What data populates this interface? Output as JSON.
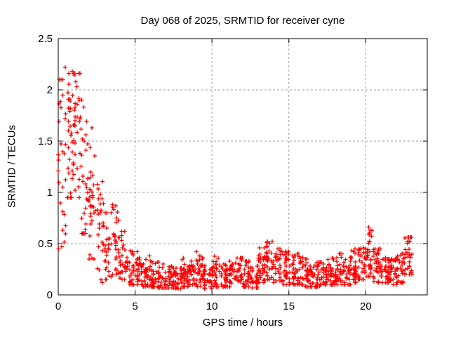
{
  "chart_data": {
    "type": "scatter",
    "title": "Day 068 of 2025, SRMTID for receiver cyne",
    "xlabel": "GPS time / hours",
    "ylabel": "SRMTID / TECUs",
    "xlim": [
      0,
      24
    ],
    "ylim": [
      0,
      2.5
    ],
    "xticks": [
      0,
      5,
      10,
      15,
      20
    ],
    "xtick_labels": [
      "0",
      "5",
      "10",
      "15",
      "20"
    ],
    "yticks": [
      0,
      0.5,
      1,
      1.5,
      2,
      2.5
    ],
    "ytick_labels": [
      "0",
      "0.5",
      "1",
      "1.5",
      "2",
      "2.5"
    ],
    "grid": true,
    "legend": "none",
    "marker": {
      "shape": "plus",
      "color": "#ff0000",
      "size": 7
    },
    "series_name": "SRMTID",
    "data_t_start": 0.0,
    "data_t_end": 23.0,
    "envelope_bins_format": [
      "t_start_h",
      "t_end_h",
      "n_points",
      "y_min",
      "y_max",
      "y_center",
      "y_halfspread"
    ],
    "envelope_bins": [
      [
        0.0,
        0.5,
        30,
        0.45,
        2.1,
        1.25,
        1.5
      ],
      [
        0.5,
        1.0,
        32,
        0.95,
        2.18,
        1.55,
        1.05
      ],
      [
        1.0,
        1.5,
        34,
        0.95,
        2.16,
        1.55,
        1.05
      ],
      [
        1.5,
        2.0,
        30,
        0.6,
        1.9,
        1.15,
        1.0
      ],
      [
        2.0,
        2.5,
        28,
        0.35,
        1.65,
        0.85,
        0.85
      ],
      [
        2.5,
        3.0,
        26,
        0.12,
        1.3,
        0.6,
        0.75
      ],
      [
        3.0,
        3.5,
        26,
        0.15,
        0.8,
        0.45,
        0.5
      ],
      [
        3.5,
        4.0,
        30,
        0.2,
        0.88,
        0.5,
        0.55
      ],
      [
        4.0,
        4.5,
        26,
        0.15,
        0.62,
        0.33,
        0.38
      ],
      [
        4.5,
        5.0,
        28,
        0.1,
        0.45,
        0.25,
        0.3
      ],
      [
        5.0,
        5.5,
        32,
        0.1,
        0.42,
        0.25,
        0.28
      ],
      [
        5.5,
        6.0,
        32,
        0.08,
        0.38,
        0.22,
        0.26
      ],
      [
        6.0,
        6.5,
        32,
        0.08,
        0.33,
        0.18,
        0.22
      ],
      [
        6.5,
        7.0,
        32,
        0.07,
        0.3,
        0.16,
        0.2
      ],
      [
        7.0,
        7.5,
        32,
        0.07,
        0.28,
        0.15,
        0.18
      ],
      [
        7.5,
        8.0,
        32,
        0.06,
        0.26,
        0.14,
        0.18
      ],
      [
        8.0,
        8.5,
        34,
        0.08,
        0.36,
        0.2,
        0.24
      ],
      [
        8.5,
        9.0,
        34,
        0.1,
        0.42,
        0.24,
        0.26
      ],
      [
        9.0,
        9.5,
        32,
        0.08,
        0.38,
        0.2,
        0.24
      ],
      [
        9.5,
        10.0,
        32,
        0.06,
        0.3,
        0.15,
        0.2
      ],
      [
        10.0,
        10.5,
        32,
        0.08,
        0.42,
        0.2,
        0.24
      ],
      [
        10.5,
        11.0,
        32,
        0.08,
        0.3,
        0.17,
        0.2
      ],
      [
        11.0,
        11.5,
        32,
        0.08,
        0.33,
        0.18,
        0.22
      ],
      [
        11.5,
        12.0,
        32,
        0.1,
        0.36,
        0.22,
        0.24
      ],
      [
        12.0,
        12.5,
        32,
        0.08,
        0.33,
        0.19,
        0.22
      ],
      [
        12.5,
        13.0,
        32,
        0.07,
        0.28,
        0.16,
        0.2
      ],
      [
        13.0,
        13.5,
        34,
        0.12,
        0.46,
        0.28,
        0.3
      ],
      [
        13.5,
        14.0,
        34,
        0.15,
        0.52,
        0.32,
        0.3
      ],
      [
        14.0,
        14.5,
        32,
        0.12,
        0.45,
        0.28,
        0.28
      ],
      [
        14.5,
        15.0,
        32,
        0.1,
        0.42,
        0.25,
        0.28
      ],
      [
        15.0,
        15.5,
        32,
        0.1,
        0.38,
        0.22,
        0.26
      ],
      [
        15.5,
        16.0,
        32,
        0.1,
        0.4,
        0.24,
        0.26
      ],
      [
        16.0,
        16.5,
        32,
        0.08,
        0.35,
        0.2,
        0.24
      ],
      [
        16.5,
        17.0,
        32,
        0.08,
        0.32,
        0.18,
        0.22
      ],
      [
        17.0,
        17.5,
        32,
        0.1,
        0.32,
        0.19,
        0.22
      ],
      [
        17.5,
        18.0,
        32,
        0.1,
        0.36,
        0.21,
        0.24
      ],
      [
        18.0,
        18.5,
        32,
        0.1,
        0.4,
        0.23,
        0.26
      ],
      [
        18.5,
        19.0,
        32,
        0.1,
        0.36,
        0.21,
        0.24
      ],
      [
        19.0,
        19.5,
        32,
        0.12,
        0.45,
        0.26,
        0.28
      ],
      [
        19.5,
        20.0,
        34,
        0.15,
        0.5,
        0.3,
        0.3
      ],
      [
        20.0,
        20.5,
        34,
        0.18,
        0.66,
        0.36,
        0.36
      ],
      [
        20.5,
        21.0,
        32,
        0.12,
        0.45,
        0.26,
        0.28
      ],
      [
        21.0,
        21.5,
        32,
        0.12,
        0.38,
        0.23,
        0.26
      ],
      [
        21.5,
        22.0,
        32,
        0.1,
        0.35,
        0.21,
        0.24
      ],
      [
        22.0,
        22.5,
        32,
        0.12,
        0.4,
        0.25,
        0.28
      ],
      [
        22.5,
        23.0,
        32,
        0.2,
        0.56,
        0.35,
        0.32
      ]
    ],
    "peak_points": [
      [
        0.45,
        2.22
      ],
      [
        0.68,
        2.16
      ],
      [
        1.08,
        2.16
      ],
      [
        1.15,
        2.08
      ],
      [
        1.22,
        2.03
      ],
      [
        2.2,
        1.63
      ],
      [
        3.75,
        0.87
      ],
      [
        13.6,
        0.52
      ],
      [
        20.2,
        0.66
      ],
      [
        20.25,
        0.61
      ],
      [
        22.85,
        0.52
      ],
      [
        22.9,
        0.56
      ]
    ],
    "seed": 20250309
  },
  "colors": {
    "marker": "#ff0000",
    "grid": "#9c9c9c",
    "frame": "#000000",
    "background": "#ffffff",
    "text": "#000000"
  }
}
